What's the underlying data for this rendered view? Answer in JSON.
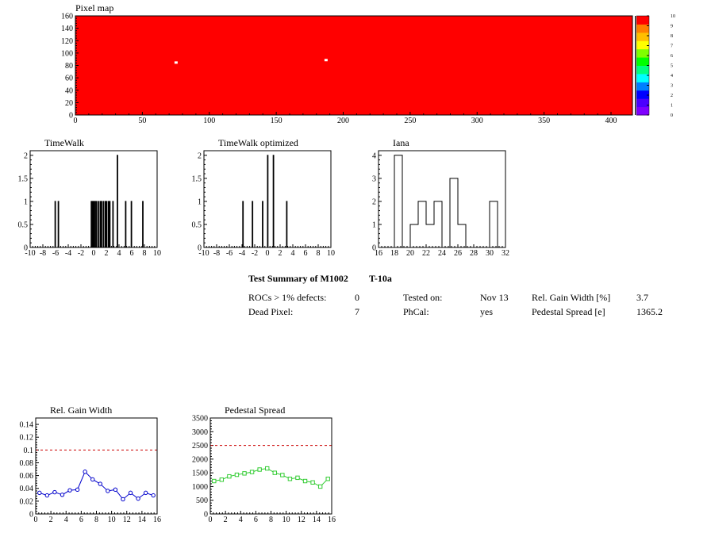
{
  "colors": {
    "map_fill": "#ff0000",
    "blue_series": "#0000cc",
    "green_series": "#33cc33",
    "ref_line": "#cc0000",
    "palette": [
      "#7f00ff",
      "#4b00ff",
      "#0000ff",
      "#007fff",
      "#00ffff",
      "#00ff7f",
      "#00ff00",
      "#7fff00",
      "#ffff00",
      "#ffbf00",
      "#ff7f00",
      "#ff0000"
    ]
  },
  "chart_data": [
    {
      "type": "heatmap",
      "title": "Pixel map",
      "xlim": [
        0,
        416
      ],
      "ylim": [
        0,
        160
      ],
      "x_ticks": [
        0,
        50,
        100,
        150,
        200,
        250,
        300,
        350,
        400
      ],
      "y_ticks": [
        0,
        20,
        40,
        60,
        80,
        100,
        120,
        140,
        160
      ],
      "z_ticks": [
        0,
        1,
        2,
        3,
        4,
        5,
        6,
        7,
        8,
        9,
        10
      ],
      "zlim": [
        0,
        10
      ],
      "fill_value": 10,
      "outliers": [
        {
          "x": 74,
          "y": 84,
          "value": 0
        },
        {
          "x": 186,
          "y": 88,
          "value": 0
        }
      ]
    },
    {
      "type": "bar",
      "title": "TimeWalk",
      "xlim": [
        -10,
        10
      ],
      "ylim": [
        0,
        2.1
      ],
      "x_ticks": [
        -10,
        -8,
        -6,
        -4,
        -2,
        0,
        2,
        4,
        6,
        8,
        10
      ],
      "y_ticks": [
        0,
        0.5,
        1,
        1.5,
        2
      ],
      "y_tick_labels": [
        "0",
        "0.5",
        "1",
        "1.5",
        "2"
      ],
      "bin_width": 0.1,
      "bins": [
        {
          "x": -6.1,
          "value": 1
        },
        {
          "x": -5.6,
          "value": 1
        },
        {
          "x": -0.4,
          "value": 1
        },
        {
          "x": -0.2,
          "value": 1
        },
        {
          "x": 0.0,
          "value": 1
        },
        {
          "x": 0.2,
          "value": 1
        },
        {
          "x": 0.4,
          "value": 1
        },
        {
          "x": 0.7,
          "value": 1
        },
        {
          "x": 1.0,
          "value": 1
        },
        {
          "x": 1.2,
          "value": 1
        },
        {
          "x": 1.5,
          "value": 1
        },
        {
          "x": 1.8,
          "value": 1
        },
        {
          "x": 2.0,
          "value": 1
        },
        {
          "x": 2.3,
          "value": 1
        },
        {
          "x": 2.5,
          "value": 1
        },
        {
          "x": 3.0,
          "value": 1
        },
        {
          "x": 3.7,
          "value": 2
        },
        {
          "x": 5.0,
          "value": 1
        },
        {
          "x": 5.9,
          "value": 1
        },
        {
          "x": 7.7,
          "value": 1
        }
      ]
    },
    {
      "type": "bar",
      "title": "TimeWalk optimized",
      "xlim": [
        -10,
        10
      ],
      "ylim": [
        0,
        2.1
      ],
      "x_ticks": [
        -10,
        -8,
        -6,
        -4,
        -2,
        0,
        2,
        4,
        6,
        8,
        10
      ],
      "y_ticks": [
        0,
        0.5,
        1,
        1.5,
        2
      ],
      "y_tick_labels": [
        "0",
        "0.5",
        "1",
        "1.5",
        "2"
      ],
      "bin_width": 0.1,
      "bins": [
        {
          "x": -3.9,
          "value": 1
        },
        {
          "x": -2.4,
          "value": 1
        },
        {
          "x": -0.8,
          "value": 1
        },
        {
          "x": 0.0,
          "value": 2
        },
        {
          "x": 0.9,
          "value": 2
        },
        {
          "x": 3.0,
          "value": 1
        }
      ]
    },
    {
      "type": "bar",
      "title": "Iana",
      "xlim": [
        16,
        32
      ],
      "ylim": [
        0,
        4.2
      ],
      "x_ticks": [
        16,
        18,
        20,
        22,
        24,
        26,
        28,
        30,
        32
      ],
      "y_ticks": [
        0,
        1,
        2,
        3,
        4
      ],
      "y_tick_labels": [
        "0",
        "1",
        "2",
        "3",
        "4"
      ],
      "bin_edges": [
        16,
        17,
        18,
        19,
        20,
        21,
        22,
        23,
        24,
        25,
        26,
        27,
        28,
        29,
        30,
        31,
        32
      ],
      "values": [
        0,
        0,
        4,
        0,
        1,
        2,
        1,
        2,
        0,
        3,
        1,
        0,
        0,
        0,
        2,
        0
      ]
    },
    {
      "type": "line",
      "title": "Rel. Gain Width",
      "xlim": [
        0,
        16
      ],
      "ylim": [
        0,
        0.15
      ],
      "x_ticks": [
        0,
        2,
        4,
        6,
        8,
        10,
        12,
        14,
        16
      ],
      "y_ticks": [
        0,
        0.02,
        0.04,
        0.06,
        0.08,
        0.1,
        0.12,
        0.14
      ],
      "y_tick_labels": [
        "0",
        "0.02",
        "0.04",
        "0.06",
        "0.08",
        "0.1",
        "0.12",
        "0.14"
      ],
      "reference_line": 0.1,
      "marker": "circle",
      "x": [
        0.5,
        1.5,
        2.5,
        3.5,
        4.5,
        5.5,
        6.5,
        7.5,
        8.5,
        9.5,
        10.5,
        11.5,
        12.5,
        13.5,
        14.5,
        15.5
      ],
      "values": [
        0.033,
        0.029,
        0.034,
        0.03,
        0.037,
        0.038,
        0.066,
        0.054,
        0.047,
        0.036,
        0.038,
        0.023,
        0.033,
        0.024,
        0.033,
        0.029
      ]
    },
    {
      "type": "line",
      "title": "Pedestal Spread",
      "xlim": [
        0,
        16
      ],
      "ylim": [
        0,
        3500
      ],
      "x_ticks": [
        0,
        2,
        4,
        6,
        8,
        10,
        12,
        14,
        16
      ],
      "y_ticks": [
        0,
        500,
        1000,
        1500,
        2000,
        2500,
        3000,
        3500
      ],
      "y_tick_labels": [
        "0",
        "500",
        "1000",
        "1500",
        "2000",
        "2500",
        "3000",
        "3500"
      ],
      "reference_line": 2500,
      "marker": "square",
      "x": [
        0.5,
        1.5,
        2.5,
        3.5,
        4.5,
        5.5,
        6.5,
        7.5,
        8.5,
        9.5,
        10.5,
        11.5,
        12.5,
        13.5,
        14.5,
        15.5
      ],
      "values": [
        1200,
        1250,
        1370,
        1430,
        1480,
        1530,
        1620,
        1660,
        1500,
        1420,
        1280,
        1320,
        1200,
        1150,
        1000,
        1280
      ]
    }
  ],
  "summary": {
    "title": "Test Summary of M1002",
    "grade": "T-10a",
    "rows": [
      {
        "label": "ROCs > 1% defects:",
        "value": "0",
        "label2": "Tested on:",
        "value2": "Nov 13",
        "label3": "Rel. Gain Width [%]",
        "value3": "3.7"
      },
      {
        "label": "Dead Pixel:",
        "value": "7",
        "label2": "PhCal:",
        "value2": "yes",
        "label3": "Pedestal Spread [e]",
        "value3": "1365.2"
      }
    ]
  }
}
